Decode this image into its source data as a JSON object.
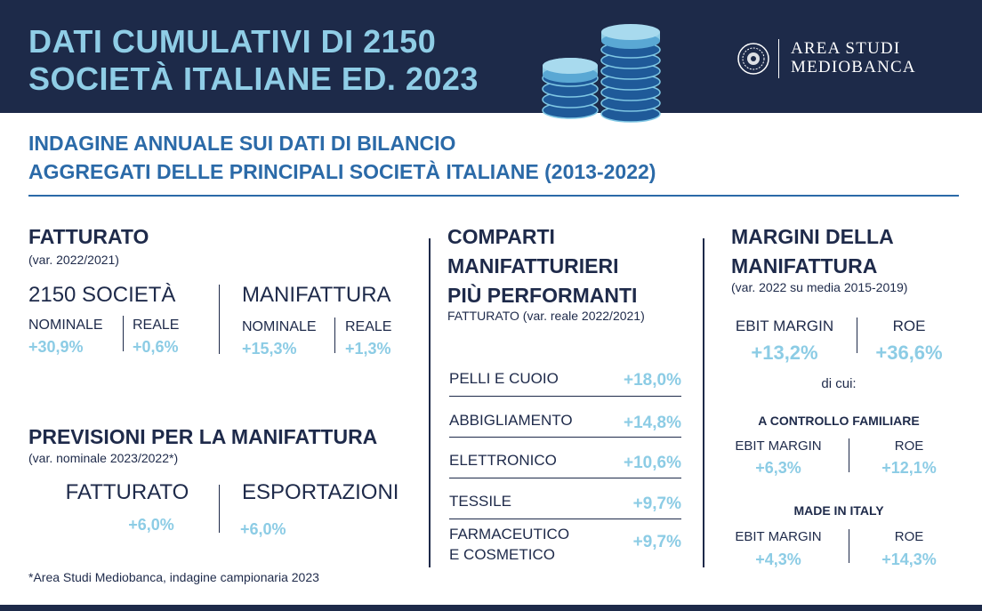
{
  "header": {
    "title_line1": "DATI CUMULATIVI DI 2150",
    "title_line2": "SOCIETÀ ITALIANE ED. 2023",
    "coins_icon": "coins-stack-icon",
    "logo_line1": "AREA STUDI",
    "logo_line2": "MEDIOBANCA"
  },
  "subtitle": {
    "line1": "INDAGINE ANNUALE SUI DATI DI BILANCIO",
    "line2": "AGGREGATI DELLE PRINCIPALI SOCIETÀ ITALIANE (2013-2022)"
  },
  "fatturato": {
    "title": "FATTURATO",
    "note": "(var. 2022/2021)",
    "societa": {
      "label": "2150 SOCIETÀ",
      "nominale_label": "NOMINALE",
      "nominale_value": "+30,9%",
      "reale_label": "REALE",
      "reale_value": "+0,6%"
    },
    "manifattura": {
      "label": "MANIFATTURA",
      "nominale_label": "NOMINALE",
      "nominale_value": "+15,3%",
      "reale_label": "REALE",
      "reale_value": "+1,3%"
    }
  },
  "previsioni": {
    "title": "PREVISIONI PER LA MANIFATTURA",
    "note": "(var. nominale 2023/2022*)",
    "fatturato_label": "FATTURATO",
    "fatturato_value": "+6,0%",
    "esportazioni_label": "ESPORTAZIONI",
    "esportazioni_value": "+6,0%"
  },
  "comparti": {
    "title_line1": "COMPARTI",
    "title_line2": "MANIFATTURIERI",
    "title_line3": "PIÙ PERFORMANTI",
    "note": "FATTURATO (var. reale 2022/2021)",
    "rows": [
      {
        "label": "PELLI E CUOIO",
        "value": "+18,0%"
      },
      {
        "label": "ABBIGLIAMENTO",
        "value": "+14,8%"
      },
      {
        "label": "ELETTRONICO",
        "value": "+10,6%"
      },
      {
        "label": "TESSILE",
        "value": "+9,7%"
      },
      {
        "label_line1": "FARMACEUTICO",
        "label_line2": "E COSMETICO",
        "value": "+9,7%"
      }
    ]
  },
  "margini": {
    "title_line1": "MARGINI DELLA",
    "title_line2": "MANIFATTURA",
    "note": "(var. 2022 su media 2015-2019)",
    "ebit_label": "EBIT MARGIN",
    "ebit_value": "+13,2%",
    "roe_label": "ROE",
    "roe_value": "+36,6%",
    "di_cui": "di cui:",
    "familiare": {
      "title": "A CONTROLLO FAMILIARE",
      "ebit_label": "EBIT MARGIN",
      "ebit_value": "+6,3%",
      "roe_label": "ROE",
      "roe_value": "+12,1%"
    },
    "made_in_italy": {
      "title": "MADE IN ITALY",
      "ebit_label": "EBIT MARGIN",
      "ebit_value": "+4,3%",
      "roe_label": "ROE",
      "roe_value": "+14,3%"
    }
  },
  "footer": {
    "note": "*Area Studi Mediobanca, indagine campionaria 2023"
  },
  "colors": {
    "navy": "#1d2a49",
    "light_blue": "#8ccce5",
    "mid_blue": "#2b6aa8",
    "text": "#1e2a4a"
  }
}
